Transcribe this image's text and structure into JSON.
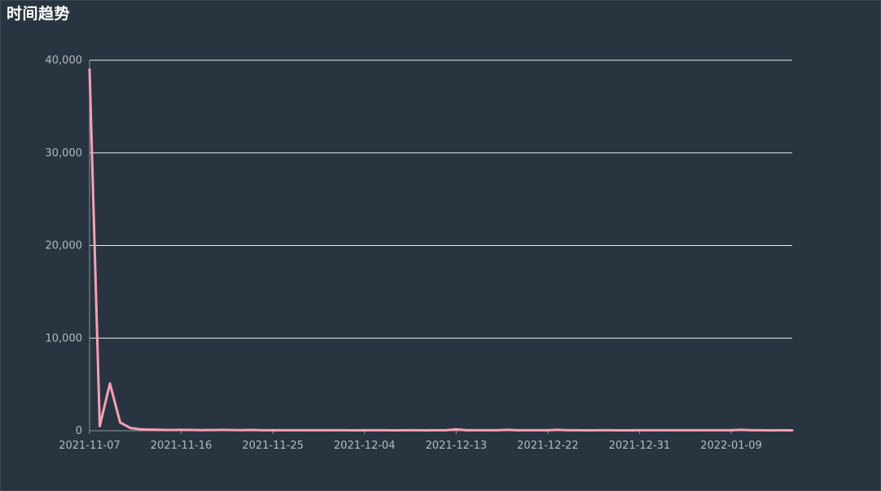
{
  "chart_data": {
    "type": "line",
    "title": "时间趋势",
    "xlabel": "",
    "ylabel": "",
    "ylim": [
      0,
      40000
    ],
    "grid": true,
    "y_ticks": [
      "0",
      "10,000",
      "20,000",
      "30,000",
      "40,000"
    ],
    "x_tick_labels": [
      "2021-11-07",
      "2021-11-16",
      "2021-11-25",
      "2021-12-04",
      "2021-12-13",
      "2021-12-22",
      "2021-12-31",
      "2022-01-09"
    ],
    "x_start": "2021-11-07",
    "x_end": "2022-01-15",
    "series": [
      {
        "name": "",
        "color": "#f79fb5",
        "x": [
          "2021-11-07",
          "2021-11-08",
          "2021-11-09",
          "2021-11-10",
          "2021-11-11",
          "2021-11-12",
          "2021-11-13",
          "2021-11-14",
          "2021-11-15",
          "2021-11-16",
          "2021-11-17",
          "2021-11-18",
          "2021-11-19",
          "2021-11-20",
          "2021-11-21",
          "2021-11-22",
          "2021-11-23",
          "2021-11-24",
          "2021-11-25",
          "2021-11-26",
          "2021-11-27",
          "2021-11-28",
          "2021-11-29",
          "2021-11-30",
          "2021-12-01",
          "2021-12-02",
          "2021-12-03",
          "2021-12-04",
          "2021-12-05",
          "2021-12-06",
          "2021-12-07",
          "2021-12-08",
          "2021-12-09",
          "2021-12-10",
          "2021-12-11",
          "2021-12-12",
          "2021-12-13",
          "2021-12-14",
          "2021-12-15",
          "2021-12-16",
          "2021-12-17",
          "2021-12-18",
          "2021-12-19",
          "2021-12-20",
          "2021-12-21",
          "2021-12-22",
          "2021-12-23",
          "2021-12-24",
          "2021-12-25",
          "2021-12-26",
          "2021-12-27",
          "2021-12-28",
          "2021-12-29",
          "2021-12-30",
          "2021-12-31",
          "2022-01-01",
          "2022-01-02",
          "2022-01-03",
          "2022-01-04",
          "2022-01-05",
          "2022-01-06",
          "2022-01-07",
          "2022-01-08",
          "2022-01-09",
          "2022-01-10",
          "2022-01-11",
          "2022-01-12",
          "2022-01-13",
          "2022-01-14",
          "2022-01-15"
        ],
        "values": [
          39000,
          500,
          5100,
          900,
          300,
          150,
          120,
          100,
          80,
          100,
          90,
          70,
          80,
          90,
          80,
          70,
          90,
          60,
          50,
          60,
          50,
          60,
          50,
          50,
          60,
          50,
          40,
          50,
          60,
          50,
          40,
          50,
          50,
          40,
          50,
          50,
          150,
          60,
          50,
          50,
          50,
          100,
          50,
          50,
          60,
          50,
          100,
          50,
          50,
          40,
          50,
          50,
          40,
          40,
          50,
          50,
          50,
          50,
          50,
          50,
          60,
          50,
          50,
          50,
          100,
          50,
          50,
          40,
          50,
          40
        ]
      }
    ]
  }
}
